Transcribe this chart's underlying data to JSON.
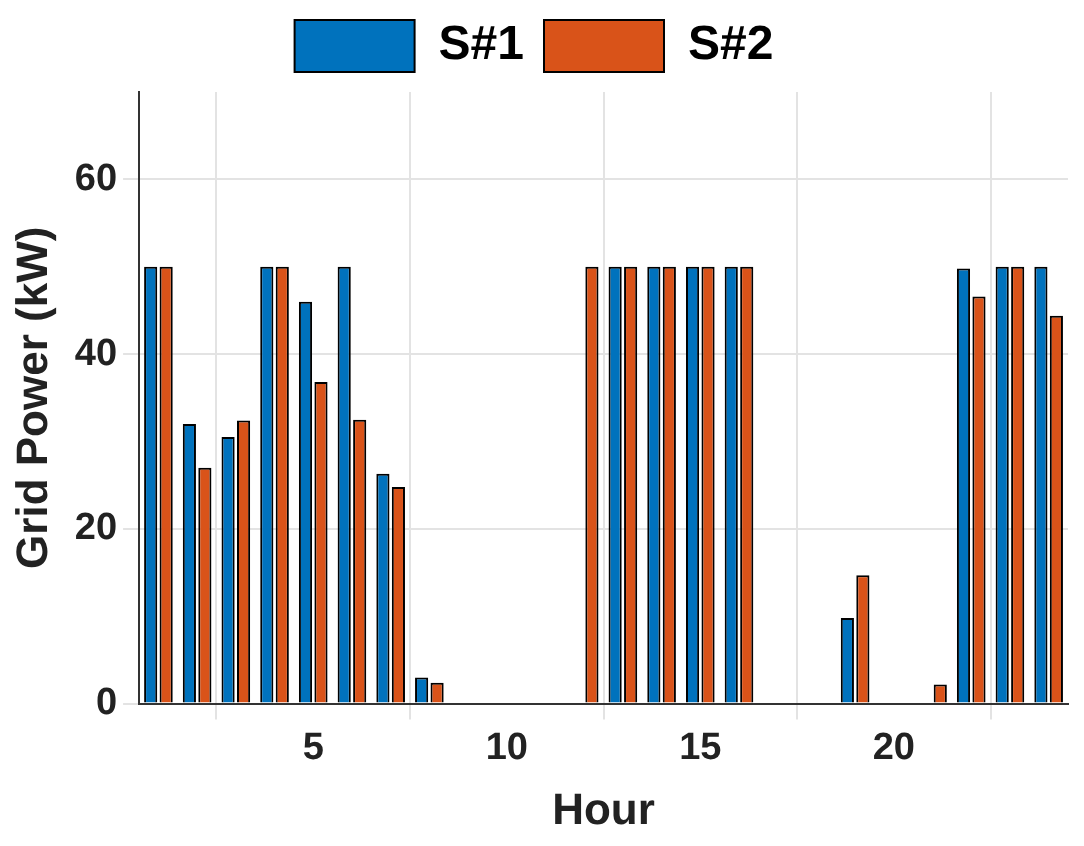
{
  "chart_data": {
    "type": "bar",
    "xlabel": "Hour",
    "ylabel": "Grid Power (kW)",
    "x": [
      1,
      2,
      3,
      4,
      5,
      6,
      7,
      8,
      9,
      10,
      11,
      12,
      13,
      14,
      15,
      16,
      17,
      18,
      19,
      20,
      21,
      22,
      23,
      24
    ],
    "series": [
      {
        "name": "S#1",
        "color": "#0072bd",
        "values": [
          50,
          32,
          30.5,
          50,
          46,
          50,
          26.3,
          3,
          0,
          0,
          0,
          0,
          50,
          50,
          50,
          50,
          0,
          0,
          9.8,
          0,
          0,
          49.8,
          50,
          50
        ]
      },
      {
        "name": "S#2",
        "color": "#d95319",
        "values": [
          50,
          27,
          32.4,
          50,
          36.8,
          32.5,
          24.8,
          2.4,
          0,
          0,
          0,
          50,
          50,
          50,
          50,
          50,
          0,
          0,
          14.7,
          0,
          2.2,
          46.6,
          50,
          44.4
        ]
      }
    ],
    "xlim": [
      0.5,
      24.5
    ],
    "xticks": [
      5,
      10,
      15,
      20
    ],
    "ylim": [
      0,
      70
    ],
    "yticks": [
      0,
      20,
      40,
      60
    ],
    "grid": true,
    "legend": "top"
  }
}
